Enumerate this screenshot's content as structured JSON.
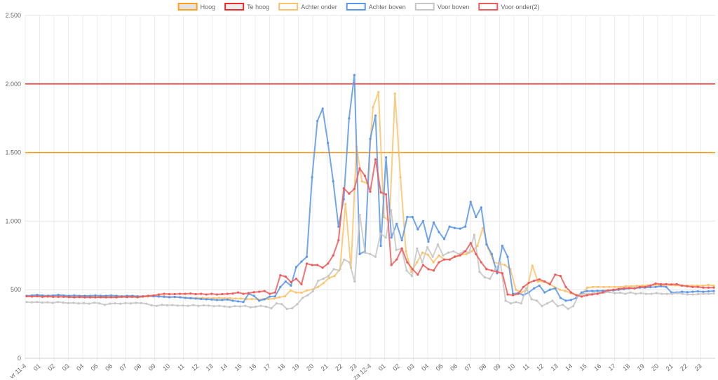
{
  "chart_data": {
    "type": "line",
    "legend": {
      "placement": "top-center"
    },
    "y_axis": {
      "min": 0,
      "max": 2500,
      "ticks": [
        0,
        500,
        1000,
        1500,
        2000,
        2500
      ],
      "tick_labels": [
        "0",
        "500",
        "1.000",
        "1.500",
        "2.000",
        "2.500"
      ],
      "grid": true
    },
    "x_axis": {
      "grid": true,
      "tick_labels": [
        "vr 11-4",
        "01",
        "02",
        "03",
        "04",
        "05",
        "06",
        "07",
        "08",
        "09",
        "10",
        "11",
        "12",
        "13",
        "14",
        "15",
        "16",
        "17",
        "18",
        "19",
        "20",
        "21",
        "22",
        "23",
        "za 12-4",
        "01",
        "02",
        "03",
        "04",
        "05",
        "06",
        "07",
        "08",
        "09",
        "10",
        "11",
        "12",
        "13",
        "14",
        "15",
        "16",
        "17",
        "18",
        "19",
        "20",
        "21",
        "22",
        "23"
      ]
    },
    "thresholds": [
      {
        "name": "Hoog",
        "value": 1500,
        "color": "#ff9f1a",
        "fill": "#e3e3e3"
      },
      {
        "name": "Te hoog",
        "value": 2000,
        "color": "#ee2a2a",
        "fill": "#ededed"
      }
    ],
    "series": [
      {
        "name": "Achter onder",
        "color": "#fbc36b",
        "values": [
          455,
          455,
          455,
          455,
          458,
          455,
          455,
          452,
          452,
          450,
          452,
          450,
          450,
          450,
          450,
          450,
          450,
          448,
          448,
          448,
          450,
          450,
          450,
          452,
          455,
          452,
          448,
          445,
          445,
          442,
          440,
          440,
          440,
          438,
          438,
          440,
          438,
          438,
          435,
          435,
          432,
          432,
          430,
          430,
          432,
          435,
          445,
          452,
          495,
          480,
          478,
          495,
          502,
          520,
          548,
          585,
          600,
          650,
          1125,
          660,
          1545,
          1290,
          1275,
          1830,
          1940,
          1030,
          1000,
          1930,
          1320,
          780,
          630,
          700,
          770,
          755,
          700,
          750,
          720,
          720,
          745,
          755,
          760,
          780,
          820,
          950,
          800,
          700,
          690,
          680,
          650,
          500,
          480,
          500,
          675,
          560,
          560,
          545,
          520,
          500,
          490,
          475,
          460,
          470,
          515,
          520,
          520,
          520,
          520,
          520,
          520,
          525,
          525,
          528,
          530,
          532,
          535,
          532,
          535,
          535,
          532,
          530,
          530,
          530,
          530,
          530,
          535,
          530
        ]
      },
      {
        "name": "Achter boven",
        "color": "#5b97ea",
        "values": [
          455,
          458,
          462,
          458,
          455,
          458,
          462,
          458,
          455,
          458,
          455,
          455,
          455,
          458,
          455,
          455,
          458,
          455,
          452,
          455,
          455,
          452,
          452,
          455,
          452,
          450,
          448,
          445,
          448,
          445,
          440,
          438,
          435,
          432,
          430,
          428,
          425,
          425,
          428,
          420,
          415,
          410,
          470,
          455,
          420,
          430,
          450,
          452,
          520,
          560,
          530,
          665,
          705,
          740,
          1320,
          1730,
          1820,
          1570,
          1290,
          960,
          1160,
          1750,
          2065,
          760,
          780,
          1600,
          1770,
          820,
          1465,
          880,
          980,
          860,
          1030,
          1030,
          940,
          1000,
          850,
          990,
          920,
          870,
          960,
          950,
          945,
          960,
          1140,
          1030,
          1100,
          830,
          760,
          620,
          820,
          740,
          470,
          475,
          460,
          480,
          510,
          530,
          480,
          500,
          510,
          440,
          420,
          425,
          440,
          480,
          490,
          490,
          492,
          492,
          495,
          495,
          500,
          505,
          510,
          510,
          515,
          515,
          518,
          520,
          525,
          520,
          480,
          480,
          485,
          482,
          485,
          488,
          485,
          488,
          490
        ]
      },
      {
        "name": "Voor boven",
        "color": "#c7c7c7",
        "values": [
          410,
          408,
          410,
          406,
          408,
          404,
          410,
          406,
          402,
          404,
          400,
          402,
          398,
          405,
          400,
          390,
          398,
          400,
          398,
          402,
          400,
          404,
          402,
          398,
          386,
          382,
          390,
          386,
          388,
          384,
          385,
          382,
          388,
          382,
          386,
          384,
          380,
          382,
          378,
          374,
          380,
          378,
          382,
          372,
          376,
          382,
          376,
          365,
          400,
          395,
          360,
          365,
          395,
          440,
          460,
          490,
          565,
          580,
          600,
          650,
          640,
          720,
          700,
          560,
          1045,
          770,
          760,
          740,
          910,
          880,
          1080,
          790,
          800,
          640,
          600,
          800,
          700,
          810,
          740,
          830,
          750,
          770,
          780,
          760,
          780,
          770,
          900,
          630,
          590,
          580,
          650,
          700,
          420,
          400,
          410,
          400,
          510,
          430,
          420,
          380,
          400,
          420,
          380,
          390,
          360,
          380,
          460,
          470,
          470,
          475,
          478,
          480,
          482,
          475,
          478,
          470,
          480,
          470,
          475,
          470,
          470,
          475,
          470,
          470,
          470,
          475,
          470,
          465,
          465,
          468,
          470,
          470,
          472
        ]
      },
      {
        "name": "Voor onder(2)",
        "color": "#ee5a5a",
        "values": [
          452,
          450,
          452,
          448,
          450,
          448,
          448,
          448,
          446,
          444,
          446,
          444,
          444,
          444,
          445,
          444,
          445,
          444,
          448,
          446,
          448,
          445,
          450,
          455,
          458,
          465,
          470,
          468,
          468,
          470,
          470,
          472,
          468,
          470,
          465,
          470,
          465,
          468,
          470,
          472,
          480,
          470,
          475,
          482,
          485,
          490,
          470,
          480,
          605,
          595,
          555,
          580,
          540,
          690,
          680,
          680,
          660,
          690,
          750,
          860,
          1240,
          1200,
          1235,
          1385,
          1330,
          1215,
          1450,
          1210,
          1195,
          680,
          720,
          800,
          700,
          650,
          610,
          680,
          650,
          640,
          700,
          720,
          720,
          740,
          750,
          780,
          840,
          760,
          700,
          650,
          640,
          630,
          620,
          465,
          460,
          470,
          520,
          550,
          565,
          575,
          560,
          540,
          610,
          600,
          520,
          480,
          460,
          450,
          460,
          465,
          470,
          480,
          495,
          500,
          505,
          510,
          512,
          510,
          520,
          520,
          530,
          545,
          540,
          540,
          538,
          540,
          530,
          525,
          520,
          520,
          515,
          515,
          515
        ]
      }
    ]
  }
}
